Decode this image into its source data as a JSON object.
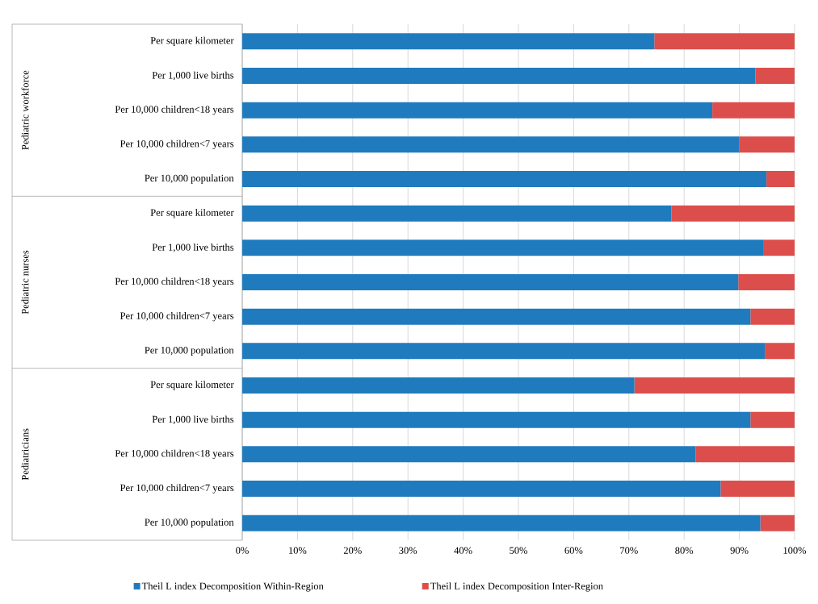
{
  "chart_data": {
    "type": "bar",
    "orientation": "horizontal",
    "stacked": true,
    "categories": [
      "Per square kilometer",
      "Per 1,000 live births",
      "Per 10,000 children<18 years",
      "Per 10,000 children<7 years",
      "Per 10,000 population",
      "Per square kilometer",
      "Per 1,000 live births",
      "Per 10,000 children<18 years",
      "Per 10,000 children<7 years",
      "Per 10,000 population",
      "Per square kilometer",
      "Per 1,000 live births",
      "Per 10,000 children<18 years",
      "Per 10,000 children<7 years",
      "Per 10,000 population"
    ],
    "series": [
      {
        "name": "Theil L index Decomposition Within-Region",
        "color": "#1f7bbd",
        "values": [
          74.6,
          92.9,
          85.1,
          90.0,
          94.9,
          77.7,
          94.3,
          89.8,
          92.0,
          94.6,
          71.0,
          92.0,
          82.1,
          86.6,
          93.8
        ]
      },
      {
        "name": "Theil L index Decomposition Inter-Region",
        "color": "#dc4e4b",
        "values": [
          25.4,
          7.1,
          14.9,
          10.0,
          5.1,
          22.3,
          5.7,
          10.2,
          8.0,
          5.4,
          29.0,
          8.0,
          17.9,
          13.4,
          6.2
        ]
      }
    ],
    "xlim": [
      0,
      100
    ],
    "xticks": [
      {
        "value": 0,
        "label": "0%"
      },
      {
        "value": 10,
        "label": "10%"
      },
      {
        "value": 20,
        "label": "20%"
      },
      {
        "value": 30,
        "label": "30%"
      },
      {
        "value": 40,
        "label": "40%"
      },
      {
        "value": 50,
        "label": "50%"
      },
      {
        "value": 60,
        "label": "60%"
      },
      {
        "value": 70,
        "label": "70%"
      },
      {
        "value": 80,
        "label": "80%"
      },
      {
        "value": 90,
        "label": "90%"
      },
      {
        "value": 100,
        "label": "100%"
      }
    ],
    "annotations": [
      "Pediatric workforce",
      "Pediatric nurses",
      "Pediatricians"
    ],
    "grid": "x",
    "legend": "bottom"
  }
}
